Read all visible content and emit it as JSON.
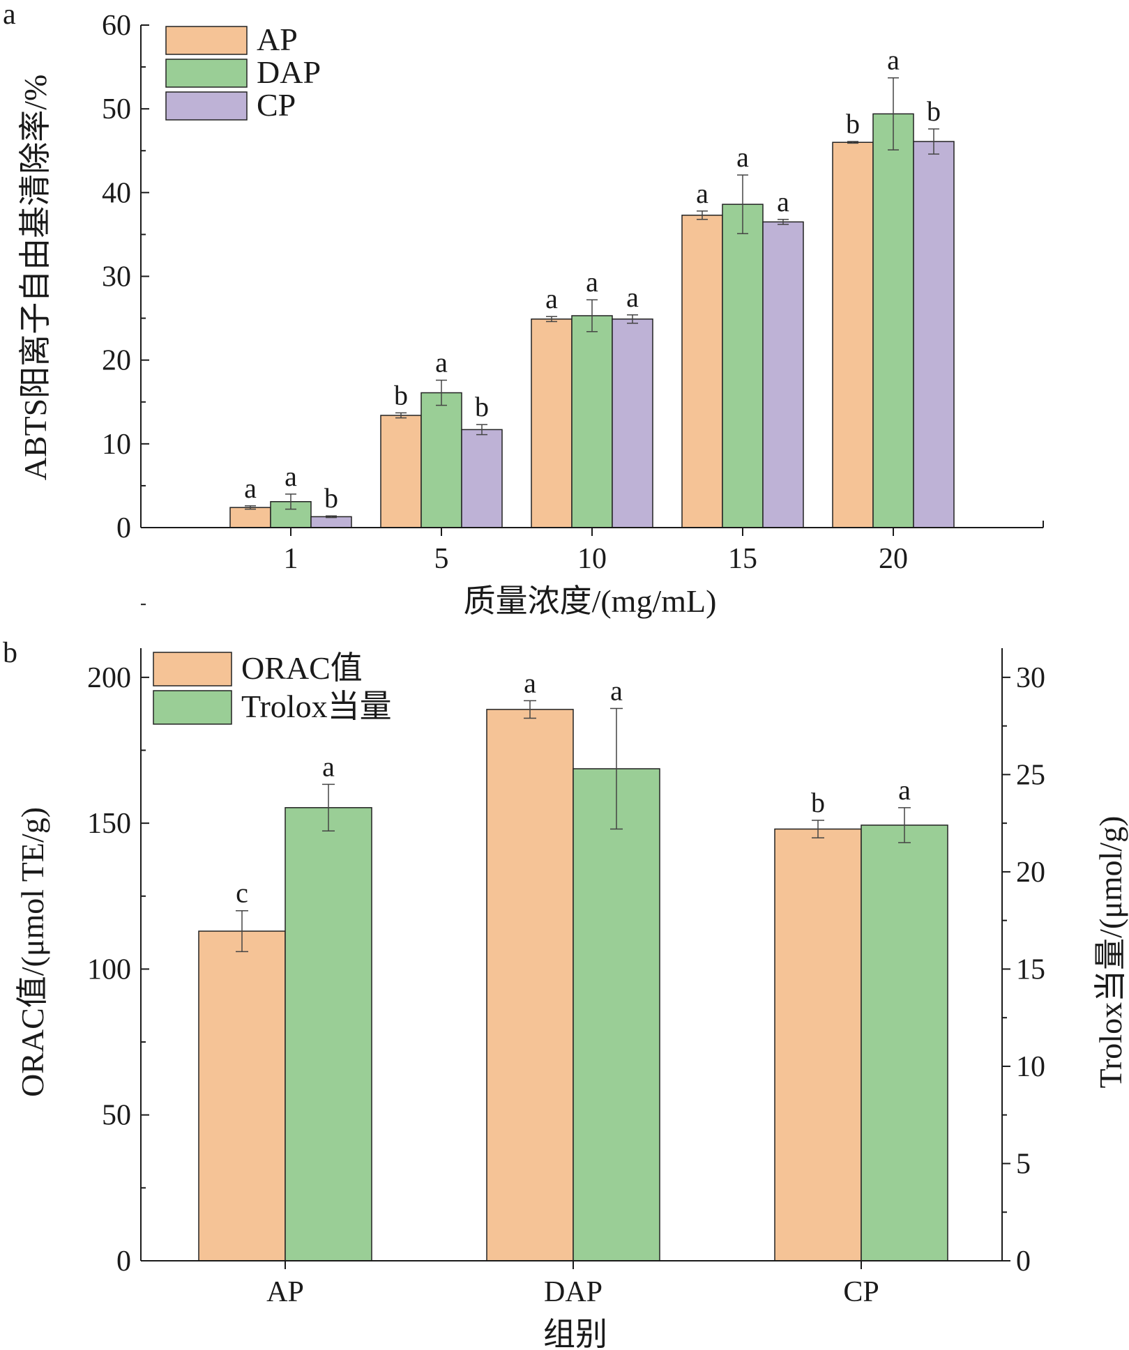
{
  "colors": {
    "orange": "#f5c396",
    "green": "#9ace96",
    "purple": "#beb2d6",
    "axis": "#1a1a1a",
    "bar_edge": "#222222"
  },
  "chart_data": [
    {
      "panel": "a",
      "type": "bar",
      "categories": [
        "1",
        "5",
        "10",
        "15",
        "20"
      ],
      "xlabel": "质量浓度/(mg/mL)",
      "ylabel": "ABTS阳离子自由基清除率/%",
      "ylim": [
        0,
        60
      ],
      "yticks": [
        "0",
        "10",
        "20",
        "30",
        "40",
        "50",
        "60"
      ],
      "legend_position": "top-left",
      "series": [
        {
          "name": "AP",
          "color_key": "orange",
          "values": [
            2.4,
            13.4,
            24.9,
            37.3,
            46.0
          ],
          "errors": [
            0.2,
            0.3,
            0.3,
            0.5,
            0.1
          ],
          "labels": [
            "a",
            "b",
            "a",
            "a",
            "b"
          ]
        },
        {
          "name": "DAP",
          "color_key": "green",
          "values": [
            3.1,
            16.1,
            25.3,
            38.6,
            49.4
          ],
          "errors": [
            0.9,
            1.5,
            1.9,
            3.5,
            4.3
          ],
          "labels": [
            "a",
            "a",
            "a",
            "a",
            "a"
          ]
        },
        {
          "name": "CP",
          "color_key": "purple",
          "values": [
            1.3,
            11.7,
            24.9,
            36.5,
            46.1
          ],
          "errors": [
            0.1,
            0.6,
            0.5,
            0.3,
            1.5
          ],
          "labels": [
            "b",
            "b",
            "a",
            "a",
            "b"
          ]
        }
      ]
    },
    {
      "panel": "b",
      "type": "bar",
      "categories": [
        "AP",
        "DAP",
        "CP"
      ],
      "xlabel": "组别",
      "ylabel": "ORAC值/(μmol TE/g)",
      "ylabel_right": "Trolox当量/(μmol/g)",
      "ylim": [
        0,
        210
      ],
      "ylim_right": [
        0,
        31.5
      ],
      "yticks": [
        "0",
        "50",
        "100",
        "150",
        "200"
      ],
      "yticks_right": [
        "0",
        "5",
        "10",
        "15",
        "20",
        "25",
        "30"
      ],
      "legend_position": "top-left",
      "series": [
        {
          "name": "ORAC值",
          "axis": "left",
          "color_key": "orange",
          "values": [
            113,
            189,
            148
          ],
          "errors": [
            7,
            3,
            3
          ],
          "labels": [
            "c",
            "a",
            "b"
          ]
        },
        {
          "name": "Trolox当量",
          "axis": "right",
          "color_key": "green",
          "values": [
            23.3,
            25.3,
            22.4
          ],
          "errors": [
            1.2,
            3.1,
            0.9
          ],
          "labels": [
            "a",
            "a",
            "a"
          ]
        }
      ]
    }
  ]
}
